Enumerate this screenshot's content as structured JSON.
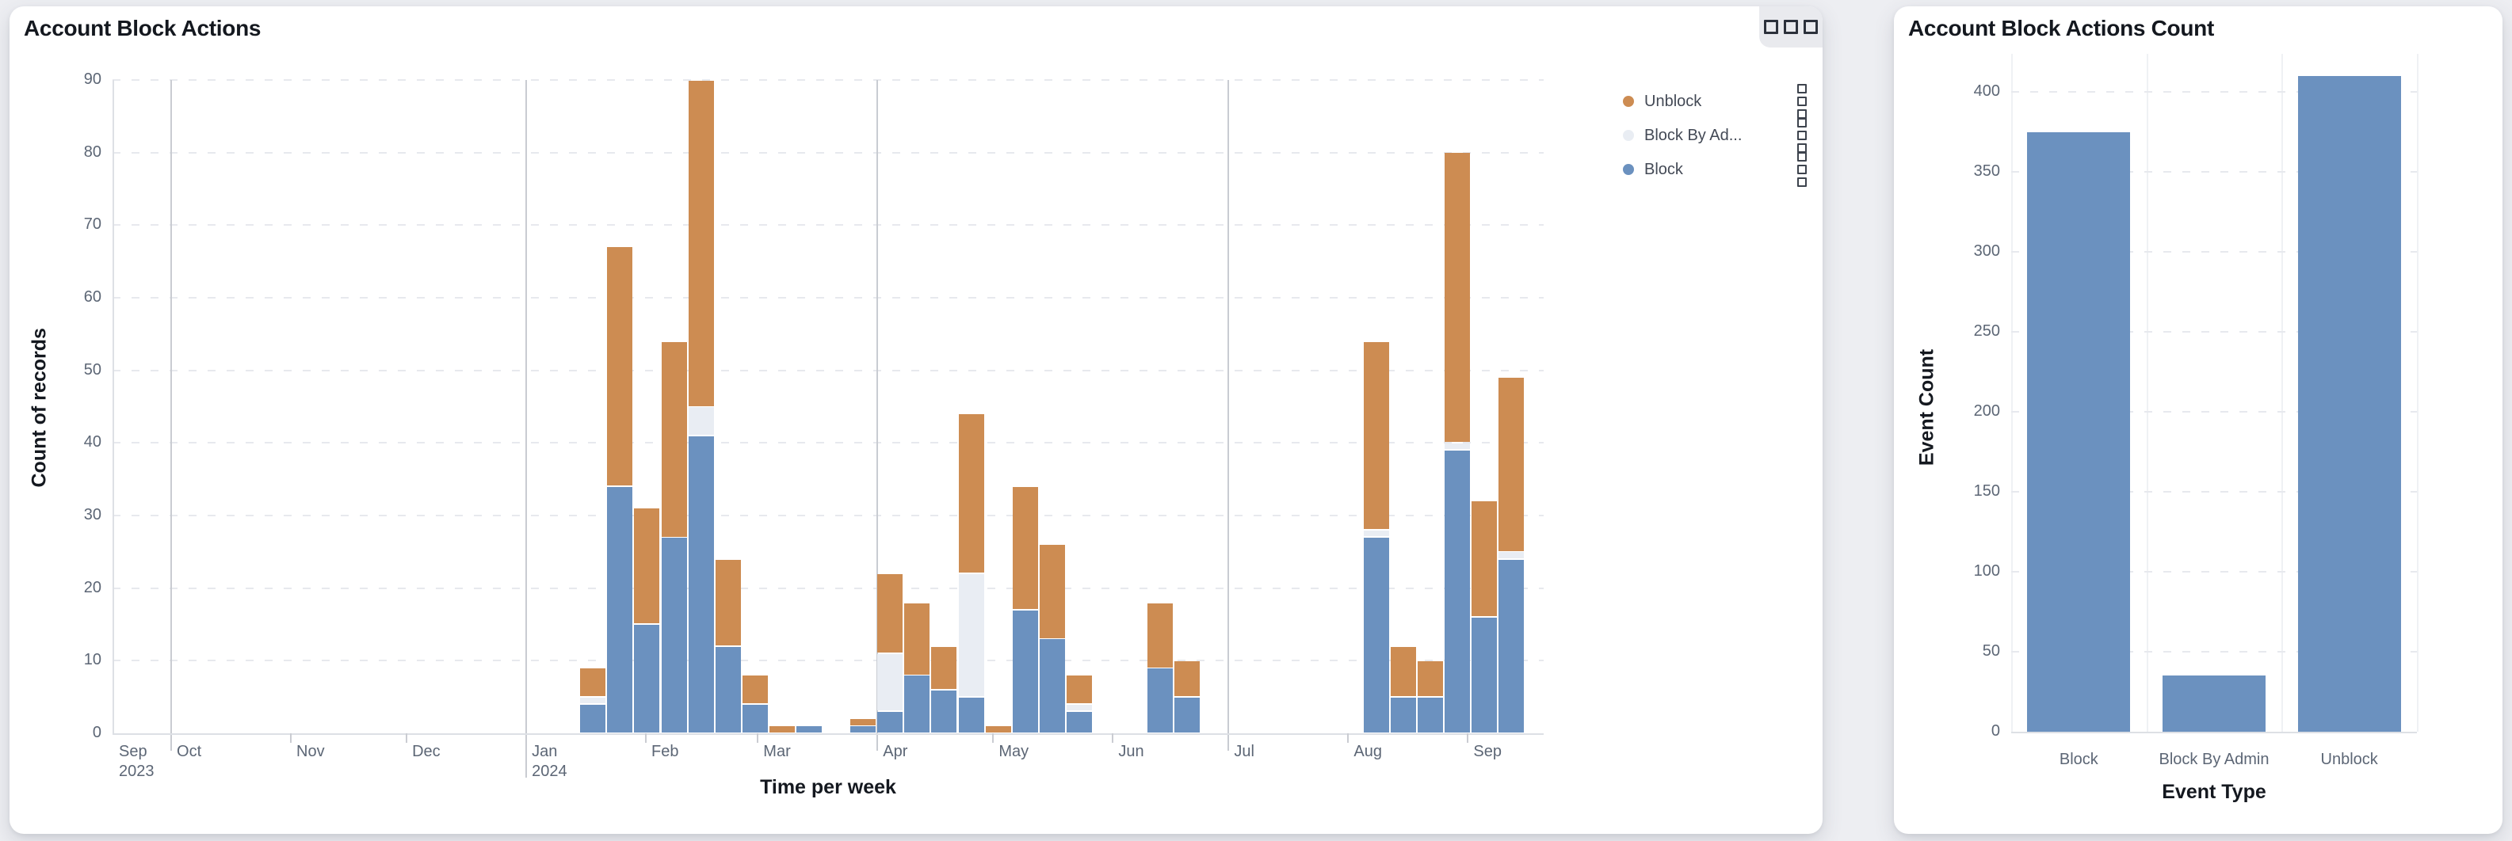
{
  "left_panel": {
    "title": "Account Block Actions",
    "menu_button": {
      "icon": "three-squares-menu-icon"
    },
    "legend": [
      {
        "label": "Unblock",
        "color": "#cd8c52"
      },
      {
        "label": "Block By Ad...",
        "color": "#e9edf3"
      },
      {
        "label": "Block",
        "color": "#6b91bf"
      }
    ],
    "chart_data": {
      "type": "bar",
      "variant": "stacked-weekly-time-series",
      "title": "Account Block Actions",
      "xlabel": "Time per week",
      "ylabel": "Count of records",
      "ylim": [
        0,
        90
      ],
      "ytick_step": 10,
      "grid": "horizontal-dashed",
      "legend_position": "right",
      "month_ticks": [
        "Sep 2023",
        "Oct",
        "Nov",
        "Dec",
        "Jan 2024",
        "Feb",
        "Mar",
        "Apr",
        "May",
        "Jun",
        "Jul",
        "Aug",
        "Sep"
      ],
      "series": [
        {
          "name": "Block",
          "color": "#6b91bf"
        },
        {
          "name": "Block By Admin",
          "color": "#e9edf3"
        },
        {
          "name": "Unblock",
          "color": "#cd8c52"
        }
      ],
      "weeks": [
        {
          "week_start": "2024-01-15",
          "block": 4,
          "admin": 1,
          "unblock": 4
        },
        {
          "week_start": "2024-01-22",
          "block": 34,
          "admin": 0,
          "unblock": 33
        },
        {
          "week_start": "2024-01-29",
          "block": 15,
          "admin": 0,
          "unblock": 16
        },
        {
          "week_start": "2024-02-05",
          "block": 27,
          "admin": 0,
          "unblock": 27
        },
        {
          "week_start": "2024-02-12",
          "block": 41,
          "admin": 4,
          "unblock": 45
        },
        {
          "week_start": "2024-02-19",
          "block": 12,
          "admin": 0,
          "unblock": 12
        },
        {
          "week_start": "2024-02-26",
          "block": 4,
          "admin": 0,
          "unblock": 4
        },
        {
          "week_start": "2024-03-04",
          "block": 0,
          "admin": 0,
          "unblock": 1
        },
        {
          "week_start": "2024-03-11",
          "block": 1,
          "admin": 0,
          "unblock": 0
        },
        {
          "week_start": "2024-03-25",
          "block": 1,
          "admin": 0,
          "unblock": 1
        },
        {
          "week_start": "2024-04-01",
          "block": 3,
          "admin": 8,
          "unblock": 11
        },
        {
          "week_start": "2024-04-08",
          "block": 8,
          "admin": 0,
          "unblock": 10
        },
        {
          "week_start": "2024-04-15",
          "block": 6,
          "admin": 0,
          "unblock": 6
        },
        {
          "week_start": "2024-04-22",
          "block": 5,
          "admin": 17,
          "unblock": 22
        },
        {
          "week_start": "2024-04-29",
          "block": 0,
          "admin": 0,
          "unblock": 1
        },
        {
          "week_start": "2024-05-06",
          "block": 17,
          "admin": 0,
          "unblock": 17
        },
        {
          "week_start": "2024-05-13",
          "block": 13,
          "admin": 0,
          "unblock": 13
        },
        {
          "week_start": "2024-05-20",
          "block": 3,
          "admin": 1,
          "unblock": 4
        },
        {
          "week_start": "2024-06-10",
          "block": 9,
          "admin": 0,
          "unblock": 9
        },
        {
          "week_start": "2024-06-17",
          "block": 5,
          "admin": 0,
          "unblock": 5
        },
        {
          "week_start": "2024-08-05",
          "block": 27,
          "admin": 1,
          "unblock": 26
        },
        {
          "week_start": "2024-08-12",
          "block": 5,
          "admin": 0,
          "unblock": 7
        },
        {
          "week_start": "2024-08-19",
          "block": 5,
          "admin": 0,
          "unblock": 5
        },
        {
          "week_start": "2024-08-26",
          "block": 39,
          "admin": 1,
          "unblock": 40
        },
        {
          "week_start": "2024-09-02",
          "block": 16,
          "admin": 0,
          "unblock": 16
        },
        {
          "week_start": "2024-09-09",
          "block": 24,
          "admin": 1,
          "unblock": 24
        }
      ]
    }
  },
  "right_panel": {
    "title": "Account Block Actions Count",
    "chart_data": {
      "type": "bar",
      "title": "Account Block Actions Count",
      "categories": [
        "Block",
        "Block By Admin",
        "Unblock"
      ],
      "values": [
        375,
        35,
        410
      ],
      "xlabel": "Event Type",
      "ylabel": "Event Count",
      "ylim": [
        0,
        430
      ],
      "ytick_step": 50,
      "grid": "horizontal-dashed",
      "bar_color": "#6b91bf"
    }
  },
  "colors": {
    "unblock": "#cd8c52",
    "block_by_admin": "#e9edf3",
    "block": "#6b91bf",
    "page_background": "#edeef2",
    "quarter_line": "#c9ccd2",
    "axis_line": "#dde0e5"
  }
}
